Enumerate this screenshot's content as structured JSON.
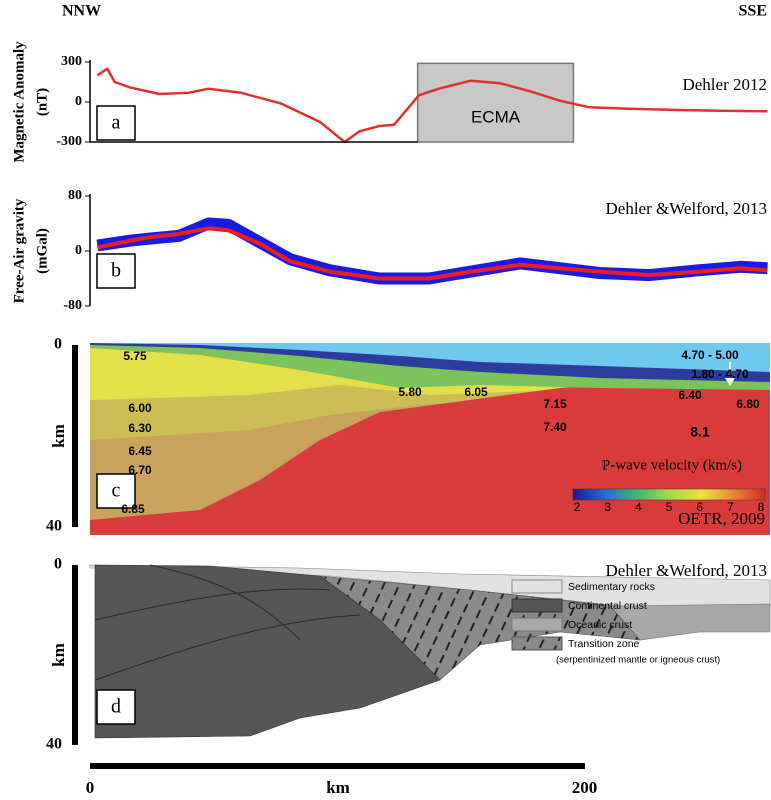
{
  "figure": {
    "left": "NNW",
    "right": "SSE",
    "xlabel": "km",
    "xlim": [
      0,
      275
    ],
    "xticks": [
      0,
      200
    ]
  },
  "chart_data": [
    {
      "type": "line",
      "panel": "a",
      "ylabel": [
        "Magnetic Anomaly",
        "(nT)"
      ],
      "source": "Dehler 2012",
      "ylim": [
        -300,
        300
      ],
      "yticks": [
        300,
        0,
        -300
      ],
      "x": [
        3,
        7,
        10,
        16,
        28,
        40,
        48,
        61,
        77,
        93,
        103,
        109,
        117,
        123,
        133,
        141,
        154,
        166,
        178,
        190,
        202,
        218,
        238,
        255,
        274
      ],
      "series": [
        {
          "color": "#e03030",
          "values": [
            200,
            250,
            150,
            110,
            60,
            70,
            100,
            70,
            -10,
            -150,
            -300,
            -220,
            -180,
            -170,
            50,
            100,
            160,
            140,
            80,
            10,
            -40,
            -50,
            -60,
            -65,
            -70
          ]
        }
      ],
      "box": {
        "label": "ECMA",
        "x": [
          132.5,
          195.5
        ],
        "y": [
          -300,
          290
        ]
      }
    },
    {
      "type": "line",
      "panel": "b",
      "ylabel": [
        "Free-Air gravity",
        "(mGal)"
      ],
      "source": "Dehler &Welford, 2013",
      "ylim": [
        -80,
        80
      ],
      "yticks": [
        80,
        0,
        -80
      ],
      "x": [
        3,
        16,
        24,
        36,
        48,
        56,
        69,
        81,
        97,
        117,
        137,
        154,
        174,
        190,
        206,
        226,
        246,
        263,
        274
      ],
      "series": [
        {
          "color": "#1a1ae6",
          "values": [
            8,
            15,
            18,
            22,
            40,
            38,
            12,
            -12,
            -28,
            -40,
            -40,
            -30,
            -18,
            -25,
            -32,
            -35,
            -28,
            -23,
            -25
          ]
        },
        {
          "color": "#ee1c1c",
          "values": [
            5,
            15,
            20,
            25,
            33,
            30,
            10,
            -15,
            -30,
            -40,
            -40,
            -30,
            -20,
            -25,
            -30,
            -35,
            -30,
            -25,
            -28
          ]
        }
      ]
    },
    {
      "type": "velocity-model",
      "panel": "c",
      "ylabel": "km",
      "ylim": [
        40,
        0
      ],
      "yticks": [
        0,
        40
      ],
      "labels": [
        "5.75",
        "4.70 - 5.00",
        "1.80 - 4.70",
        "5.80",
        "6.05",
        "7.15",
        "6.40",
        "6.80",
        "6.00",
        "6.30",
        "7.40",
        "8.1",
        "6.45",
        "6.70",
        "6.85"
      ],
      "colorbar_title": "P-wave velocity (km/s)",
      "colorbar_lim": [
        2,
        8
      ],
      "colorbar_ticks": [
        2,
        3,
        4,
        5,
        6,
        7,
        8
      ],
      "source": "OETR, 2009"
    },
    {
      "type": "cross-section",
      "panel": "d",
      "ylabel": "km",
      "ylim": [
        40,
        0
      ],
      "yticks": [
        0,
        40
      ],
      "source": "Dehler &Welford, 2013",
      "legend": [
        "Sedimentary rocks",
        "Continental crust",
        "Oceanic crust",
        "Transition zone",
        "(serpentinized mantle or igneous crust)"
      ]
    }
  ]
}
